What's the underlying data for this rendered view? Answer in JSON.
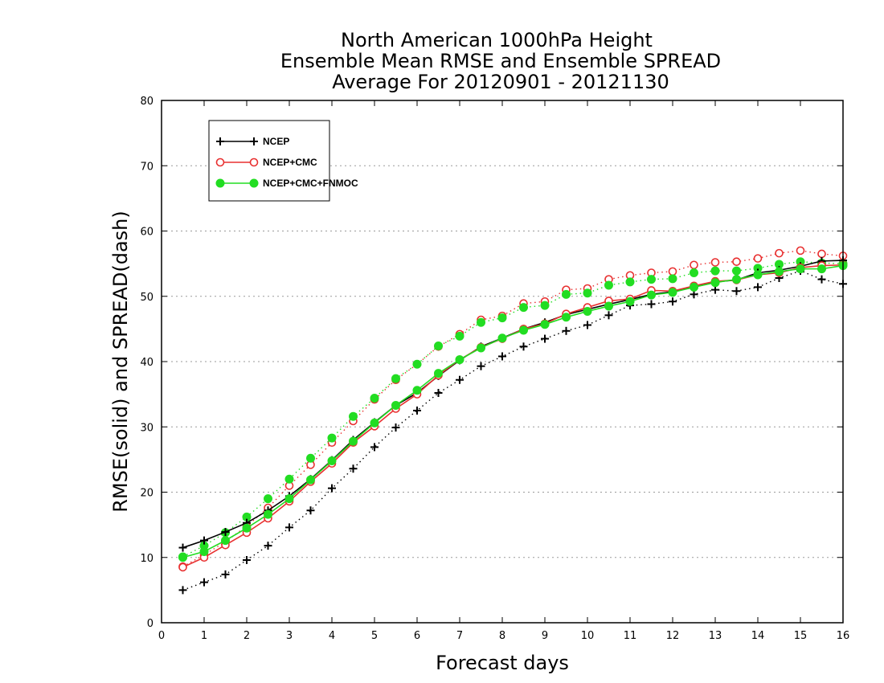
{
  "chart_data": {
    "type": "line",
    "title": [
      "North American 1000hPa Height",
      "Ensemble Mean RMSE and Ensemble SPREAD",
      "Average For 20120901 - 20121130"
    ],
    "xlabel": "Forecast days",
    "ylabel": "RMSE(solid) and SPREAD(dash)",
    "xlim": [
      0,
      16
    ],
    "ylim": [
      0,
      80
    ],
    "xticks": [
      "0",
      "1",
      "2",
      "3",
      "4",
      "5",
      "6",
      "7",
      "8",
      "9",
      "10",
      "11",
      "12",
      "13",
      "14",
      "15",
      "16"
    ],
    "yticks": [
      "0",
      "10",
      "20",
      "30",
      "40",
      "50",
      "60",
      "70",
      "80"
    ],
    "grid": "horizontal-dotted",
    "legend_position": "top-left",
    "x": [
      0.5,
      1,
      1.5,
      2,
      2.5,
      3,
      3.5,
      4,
      4.5,
      5,
      5.5,
      6,
      6.5,
      7,
      7.5,
      8,
      8.5,
      9,
      9.5,
      10,
      10.5,
      11,
      11.5,
      12,
      12.5,
      13,
      13.5,
      14,
      14.5,
      15,
      15.5,
      16
    ],
    "series": [
      {
        "name": "NCEP",
        "color": "#000000",
        "marker": "plus",
        "rmse": [
          11.5,
          12.6,
          13.9,
          15.3,
          17.2,
          19.4,
          22.0,
          24.9,
          28.0,
          30.7,
          33.3,
          35.2,
          37.8,
          40.2,
          42.3,
          43.6,
          45.0,
          46.0,
          47.2,
          48.0,
          48.8,
          49.5,
          50.3,
          50.7,
          51.4,
          52.2,
          52.5,
          53.6,
          54.0,
          54.6,
          55.4,
          55.5
        ],
        "spread": [
          5.0,
          6.2,
          7.4,
          9.6,
          11.8,
          14.6,
          17.2,
          20.6,
          23.6,
          26.9,
          29.9,
          32.5,
          35.2,
          37.2,
          39.3,
          40.8,
          42.3,
          43.5,
          44.7,
          45.6,
          47.1,
          48.6,
          48.8,
          49.2,
          50.3,
          51.0,
          50.8,
          51.4,
          52.8,
          53.9,
          52.6,
          51.9
        ]
      },
      {
        "name": "NCEP+CMC",
        "color": "#e83030",
        "marker": "open-circle",
        "rmse": [
          8.5,
          10.0,
          11.9,
          13.8,
          16.0,
          18.6,
          21.6,
          24.4,
          27.6,
          30.1,
          32.8,
          35.0,
          37.9,
          40.3,
          42.2,
          43.5,
          45.0,
          45.8,
          47.3,
          48.3,
          49.3,
          49.6,
          50.9,
          50.8,
          51.6,
          52.3,
          52.5,
          53.3,
          53.6,
          54.4,
          54.7,
          54.8
        ],
        "spread": [
          8.6,
          10.4,
          12.4,
          14.8,
          17.6,
          21.0,
          24.2,
          27.6,
          30.9,
          34.2,
          37.2,
          39.6,
          42.3,
          44.2,
          46.4,
          47.0,
          48.9,
          49.2,
          51.0,
          51.2,
          52.6,
          53.2,
          53.6,
          53.8,
          54.8,
          55.2,
          55.3,
          55.8,
          56.6,
          57.0,
          56.5,
          56.2
        ]
      },
      {
        "name": "NCEP+CMC+FNMOC",
        "color": "#22dd22",
        "marker": "filled-circle",
        "rmse": [
          10.0,
          10.9,
          12.6,
          14.5,
          16.6,
          19.0,
          21.9,
          24.8,
          27.8,
          30.6,
          33.3,
          35.6,
          38.2,
          40.3,
          42.1,
          43.6,
          44.8,
          45.7,
          46.8,
          47.7,
          48.5,
          49.2,
          50.2,
          50.6,
          51.4,
          52.1,
          52.6,
          53.3,
          53.8,
          54.2,
          54.2,
          54.7
        ],
        "spread": [
          10.1,
          11.8,
          13.8,
          16.2,
          19.0,
          22.0,
          25.2,
          28.3,
          31.6,
          34.4,
          37.4,
          39.6,
          42.4,
          43.9,
          46.0,
          46.7,
          48.3,
          48.6,
          50.3,
          50.5,
          51.7,
          52.2,
          52.6,
          52.7,
          53.6,
          53.9,
          53.9,
          54.3,
          54.9,
          55.3,
          55.1,
          55.0
        ]
      }
    ]
  }
}
